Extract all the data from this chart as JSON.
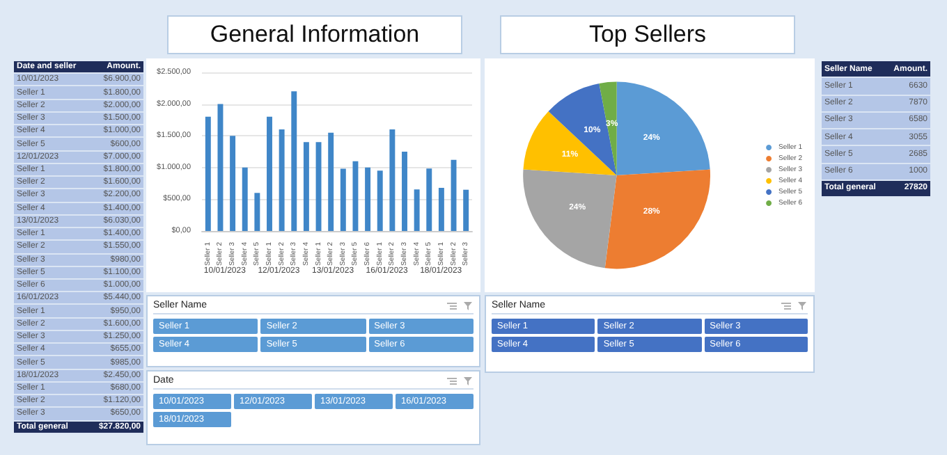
{
  "chart_data": [
    {
      "type": "other",
      "annotations": [
        "Date and seller",
        "Amount.",
        "10/01/2023",
        "$6.900,00",
        "Seller 1",
        "$1.800,00",
        "Seller 2",
        "$2.000,00",
        "Seller 3",
        "$1.500,00",
        "Seller 4",
        "$1.000,00",
        "Seller 5",
        "$600,00",
        "12/01/2023",
        "$7.000,00",
        "Seller 1",
        "$1.800,00",
        "Seller 2",
        "$1.600,00",
        "Seller 3",
        "$2.200,00",
        "Seller 4",
        "$1.400,00",
        "13/01/2023",
        "$6.030,00",
        "Seller 1",
        "$1.400,00",
        "Seller 2",
        "$1.550,00",
        "Seller 3",
        "$980,00",
        "Seller 5",
        "$1.100,00",
        "Seller 6",
        "$1.000,00",
        "16/01/2023",
        "$5.440,00",
        "Seller 1",
        "$950,00",
        "Seller 2",
        "$1.600,00",
        "Seller 3",
        "$1.250,00",
        "Seller 4",
        "$655,00",
        "Seller 5",
        "$985,00",
        "18/01/2023",
        "$2.450,00",
        "Seller 1",
        "$680,00",
        "Seller 2",
        "$1.120,00",
        "Seller 3",
        "$650,00",
        "Total general",
        "$27.820,00"
      ]
    },
    {
      "type": "bar",
      "title": "General Information",
      "categories": [
        "Seller 1",
        "Seller 2",
        "Seller 3",
        "Seller 4",
        "Seller 5",
        "Seller 1",
        "Seller 2",
        "Seller 3",
        "Seller 4",
        "Seller 1",
        "Seller 2",
        "Seller 3",
        "Seller 5",
        "Seller 6",
        "Seller 1",
        "Seller 2",
        "Seller 3",
        "Seller 4",
        "Seller 5",
        "Seller 1",
        "Seller 2",
        "Seller 3"
      ],
      "values": [
        1800,
        2000,
        1500,
        1000,
        600,
        1800,
        1600,
        2200,
        1400,
        1400,
        1550,
        980,
        1100,
        1000,
        950,
        1600,
        1250,
        655,
        985,
        680,
        1120,
        650
      ],
      "color": "#3f86c8",
      "ylim": [
        0,
        2500
      ],
      "yticks": [
        {
          "value": 0,
          "label": "$0,00"
        },
        {
          "value": 500,
          "label": "$500,00"
        },
        {
          "value": 1000,
          "label": "$1.000,00"
        },
        {
          "value": 1500,
          "label": "$1.500,00"
        },
        {
          "value": 2000,
          "label": "$2.000,00"
        },
        {
          "value": 2500,
          "label": "$2.500,00"
        }
      ],
      "annotations": [
        "10/01/2023",
        "12/01/2023",
        "13/01/2023",
        "16/01/2023",
        "18/01/2023"
      ],
      "grid": "y",
      "legend": false
    },
    {
      "type": "pie",
      "title": "Top Sellers",
      "categories": [
        "Seller 1",
        "Seller 2",
        "Seller 3",
        "Seller 4",
        "Seller 5",
        "Seller 6"
      ],
      "values": [
        24,
        28,
        24,
        11,
        10,
        3
      ],
      "colors": [
        "#5b9bd5",
        "#ed7d31",
        "#a5a5a5",
        "#ffc000",
        "#4472c4",
        "#70ad47"
      ],
      "value_labels": [
        "24%",
        "28%",
        "24%",
        "11%",
        "10%",
        "3%"
      ],
      "legend": "right"
    },
    {
      "type": "other",
      "annotations": [
        "Seller Name",
        "Amount.",
        "Seller 1",
        "6630",
        "Seller 2",
        "7870",
        "Seller 3",
        "6580",
        "Seller 4",
        "3055",
        "Seller 5",
        "2685",
        "Seller 6",
        "1000",
        "Total general",
        "27820"
      ]
    },
    {
      "type": "other",
      "title": "Seller Name",
      "annotations": [
        "Seller 1",
        "Seller 2",
        "Seller 3",
        "Seller 4",
        "Seller 5",
        "Seller 6"
      ],
      "color": "#5b9bd5"
    },
    {
      "type": "other",
      "title": "Date",
      "annotations": [
        "10/01/2023",
        "12/01/2023",
        "13/01/2023",
        "16/01/2023",
        "18/01/2023"
      ],
      "color": "#5b9bd5"
    },
    {
      "type": "other",
      "title": "Seller Name",
      "annotations": [
        "Seller 1",
        "Seller 2",
        "Seller 3",
        "Seller 4",
        "Seller 5",
        "Seller 6"
      ],
      "color": "#4472c4"
    }
  ]
}
